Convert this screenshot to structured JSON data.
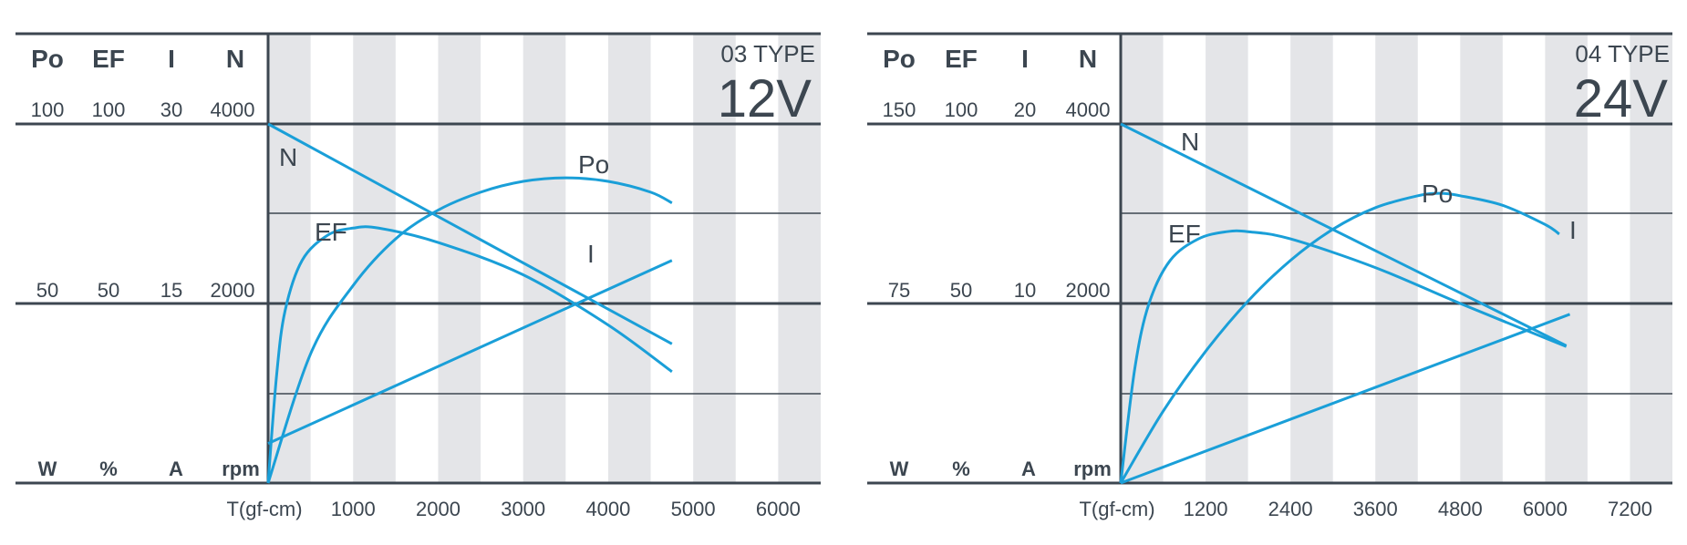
{
  "chart_data": [
    {
      "type": "line",
      "type_label": "03 TYPE",
      "voltage": "12V",
      "columns": [
        {
          "name": "Po",
          "unit": "W",
          "max": "100",
          "mid": "50"
        },
        {
          "name": "EF",
          "unit": "%",
          "max": "100",
          "mid": "50"
        },
        {
          "name": "I",
          "unit": "A",
          "max": "30",
          "mid": "15"
        },
        {
          "name": "N",
          "unit": "rpm",
          "max": "4000",
          "mid": "2000"
        }
      ],
      "xlabel": "T(gf-cm)",
      "x_ticks": [
        "1000",
        "2000",
        "3000",
        "4000",
        "5000",
        "6000"
      ],
      "xlim": [
        0,
        6500
      ],
      "x_tick_values": [
        1000,
        2000,
        3000,
        4000,
        5000,
        6000
      ],
      "series": [
        {
          "name": "N",
          "unit_max": 4000,
          "points": [
            [
              0,
              4000
            ],
            [
              4750,
              1550
            ]
          ]
        },
        {
          "name": "Po",
          "unit_max": 100,
          "points": [
            [
              0,
              0
            ],
            [
              500,
              36
            ],
            [
              1000,
              55
            ],
            [
              1500,
              68
            ],
            [
              2000,
              76
            ],
            [
              2500,
              81
            ],
            [
              3000,
              84
            ],
            [
              3500,
              85
            ],
            [
              4000,
              84
            ],
            [
              4500,
              81
            ],
            [
              4750,
              78
            ]
          ]
        },
        {
          "name": "EF",
          "unit_max": 100,
          "points": [
            [
              0,
              0
            ],
            [
              100,
              30
            ],
            [
              200,
              48
            ],
            [
              400,
              62
            ],
            [
              700,
              69
            ],
            [
              1000,
              71
            ],
            [
              1300,
              71
            ],
            [
              2000,
              67
            ],
            [
              3000,
              58
            ],
            [
              4000,
              44
            ],
            [
              4750,
              31
            ]
          ]
        },
        {
          "name": "I",
          "unit_max": 30,
          "points": [
            [
              0,
              3.3
            ],
            [
              4750,
              18.6
            ]
          ]
        }
      ]
    },
    {
      "type": "line",
      "type_label": "04 TYPE",
      "voltage": "24V",
      "columns": [
        {
          "name": "Po",
          "unit": "W",
          "max": "150",
          "mid": "75"
        },
        {
          "name": "EF",
          "unit": "%",
          "max": "100",
          "mid": "50"
        },
        {
          "name": "I",
          "unit": "A",
          "max": "20",
          "mid": "10"
        },
        {
          "name": "N",
          "unit": "rpm",
          "max": "4000",
          "mid": "2000"
        }
      ],
      "xlabel": "T(gf-cm)",
      "x_ticks": [
        "1200",
        "2400",
        "3600",
        "4800",
        "6000",
        "7200"
      ],
      "xlim": [
        0,
        7800
      ],
      "x_tick_values": [
        1200,
        2400,
        3600,
        4800,
        6000,
        7200
      ],
      "series": [
        {
          "name": "N",
          "unit_max": 4000,
          "points": [
            [
              0,
              4000
            ],
            [
              6300,
              1530
            ]
          ]
        },
        {
          "name": "Po",
          "unit_max": 150,
          "points": [
            [
              0,
              0
            ],
            [
              600,
              30
            ],
            [
              1200,
              55
            ],
            [
              1800,
              76
            ],
            [
              2400,
              93
            ],
            [
              3000,
              106
            ],
            [
              3600,
              115
            ],
            [
              4200,
              120
            ],
            [
              4500,
              121
            ],
            [
              4800,
              120
            ],
            [
              5400,
              116
            ],
            [
              6000,
              108
            ],
            [
              6200,
              104
            ]
          ]
        },
        {
          "name": "EF",
          "unit_max": 100,
          "points": [
            [
              0,
              0
            ],
            [
              200,
              32
            ],
            [
              400,
              50
            ],
            [
              700,
              62
            ],
            [
              1100,
              68
            ],
            [
              1500,
              70
            ],
            [
              1800,
              70
            ],
            [
              2400,
              68
            ],
            [
              3600,
              60
            ],
            [
              4800,
              50
            ],
            [
              6300,
              38
            ]
          ]
        },
        {
          "name": "I",
          "unit_max": 20,
          "points": [
            [
              0,
              0
            ],
            [
              6350,
              9.4
            ]
          ]
        }
      ]
    }
  ]
}
